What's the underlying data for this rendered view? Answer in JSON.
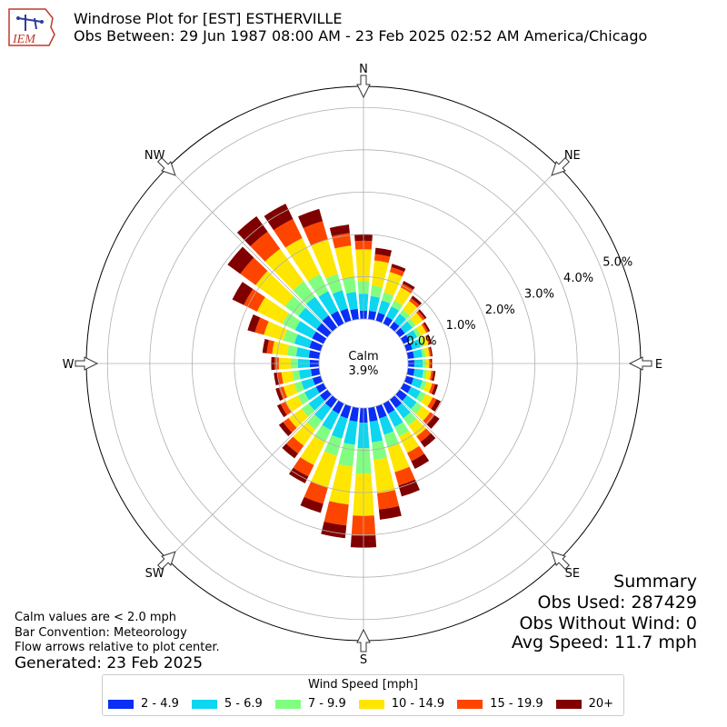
{
  "header": {
    "logo_text": "IEM",
    "title_line1": "Windrose Plot for [EST] ESTHERVILLE",
    "title_line2": "Obs Between: 29 Jun 1987 08:00 AM - 23 Feb 2025 02:52 AM America/Chicago"
  },
  "summary": {
    "title": "Summary",
    "obs_used": "Obs Used: 287429",
    "obs_without_wind": "Obs Without Wind: 0",
    "avg_speed": "Avg Speed: 11.7 mph"
  },
  "notes": {
    "calm_note": "Calm values are < 2.0 mph",
    "bar_convention": "Bar Convention: Meteorology",
    "flow_arrows": "Flow arrows relative to plot center.",
    "generated": "Generated: 23 Feb 2025"
  },
  "legend": {
    "title": "Wind Speed [mph]",
    "items": [
      {
        "label": "2 - 4.9",
        "color": "#0a2ef5"
      },
      {
        "label": "5 - 6.9",
        "color": "#0cd6f0"
      },
      {
        "label": "7 - 9.9",
        "color": "#80fe80"
      },
      {
        "label": "10 - 14.9",
        "color": "#fee600"
      },
      {
        "label": "15 - 19.9",
        "color": "#fe4500"
      },
      {
        "label": "20+",
        "color": "#800000"
      }
    ]
  },
  "chart_data": {
    "type": "windrose",
    "calm_label": "Calm",
    "calm_value": "3.9%",
    "calm_percent": 3.9,
    "radial_ticks": [
      0.0,
      1.0,
      2.0,
      3.0,
      4.0,
      5.0
    ],
    "radial_tick_labels": [
      "0.0%",
      "1.0%",
      "2.0%",
      "3.0%",
      "4.0%",
      "5.0%"
    ],
    "rmax": 5.5,
    "compass_labels": [
      "N",
      "NE",
      "E",
      "SE",
      "S",
      "SW",
      "W",
      "NW"
    ],
    "direction_count": 36,
    "bin_width_deg": 10,
    "direction_start_deg": 0,
    "speed_bins": [
      "2 - 4.9",
      "5 - 6.9",
      "7 - 9.9",
      "10 - 14.9",
      "15 - 19.9",
      "20+"
    ],
    "bin_colors": [
      "#0a2ef5",
      "#0cd6f0",
      "#80fe80",
      "#fee600",
      "#fe4500",
      "#800000"
    ],
    "cumulative_percent": [
      [
        0.2,
        0.6,
        0.9,
        1.65,
        1.85,
        2.0
      ],
      [
        0.2,
        0.55,
        0.8,
        1.4,
        1.55,
        1.7
      ],
      [
        0.2,
        0.5,
        0.7,
        1.2,
        1.32,
        1.4
      ],
      [
        0.18,
        0.45,
        0.6,
        0.95,
        1.05,
        1.12
      ],
      [
        0.17,
        0.4,
        0.52,
        0.78,
        0.86,
        0.93
      ],
      [
        0.16,
        0.38,
        0.48,
        0.68,
        0.74,
        0.79
      ],
      [
        0.16,
        0.36,
        0.45,
        0.6,
        0.65,
        0.7
      ],
      [
        0.15,
        0.35,
        0.43,
        0.55,
        0.59,
        0.63
      ],
      [
        0.15,
        0.35,
        0.42,
        0.52,
        0.56,
        0.59
      ],
      [
        0.15,
        0.35,
        0.42,
        0.5,
        0.54,
        0.57
      ],
      [
        0.16,
        0.37,
        0.45,
        0.56,
        0.61,
        0.66
      ],
      [
        0.18,
        0.4,
        0.5,
        0.64,
        0.71,
        0.78
      ],
      [
        0.2,
        0.45,
        0.58,
        0.77,
        0.87,
        0.98
      ],
      [
        0.22,
        0.5,
        0.66,
        0.9,
        1.03,
        1.17
      ],
      [
        0.25,
        0.55,
        0.76,
        1.08,
        1.24,
        1.4
      ],
      [
        0.27,
        0.62,
        0.87,
        1.3,
        1.52,
        1.72
      ],
      [
        0.3,
        0.7,
        1.02,
        1.62,
        1.95,
        2.22
      ],
      [
        0.33,
        0.82,
        1.24,
        2.03,
        2.42,
        2.66
      ],
      [
        0.35,
        0.95,
        1.55,
        2.55,
        3.02,
        3.3
      ],
      [
        0.33,
        0.88,
        1.4,
        2.3,
        2.8,
        3.1
      ],
      [
        0.3,
        0.8,
        1.22,
        2.0,
        2.4,
        2.62
      ],
      [
        0.27,
        0.7,
        1.02,
        1.62,
        1.92,
        2.1
      ],
      [
        0.25,
        0.62,
        0.88,
        1.35,
        1.58,
        1.72
      ],
      [
        0.22,
        0.55,
        0.76,
        1.14,
        1.3,
        1.42
      ],
      [
        0.2,
        0.5,
        0.68,
        1.0,
        1.13,
        1.22
      ],
      [
        0.2,
        0.48,
        0.65,
        0.92,
        1.03,
        1.11
      ],
      [
        0.2,
        0.48,
        0.64,
        0.9,
        1.0,
        1.08
      ],
      [
        0.22,
        0.5,
        0.67,
        0.95,
        1.05,
        1.13
      ],
      [
        0.25,
        0.55,
        0.76,
        1.12,
        1.25,
        1.35
      ],
      [
        0.28,
        0.65,
        0.92,
        1.4,
        1.62,
        1.8
      ],
      [
        0.3,
        0.75,
        1.08,
        1.75,
        2.1,
        2.4
      ],
      [
        0.32,
        0.85,
        1.24,
        2.1,
        2.55,
        2.92
      ],
      [
        0.35,
        0.9,
        1.35,
        2.3,
        2.8,
        3.25
      ],
      [
        0.33,
        0.85,
        1.3,
        2.25,
        2.75,
        3.15
      ],
      [
        0.3,
        0.75,
        1.15,
        2.0,
        2.45,
        2.75
      ],
      [
        0.25,
        0.65,
        1.0,
        1.75,
        2.05,
        2.25
      ]
    ]
  }
}
